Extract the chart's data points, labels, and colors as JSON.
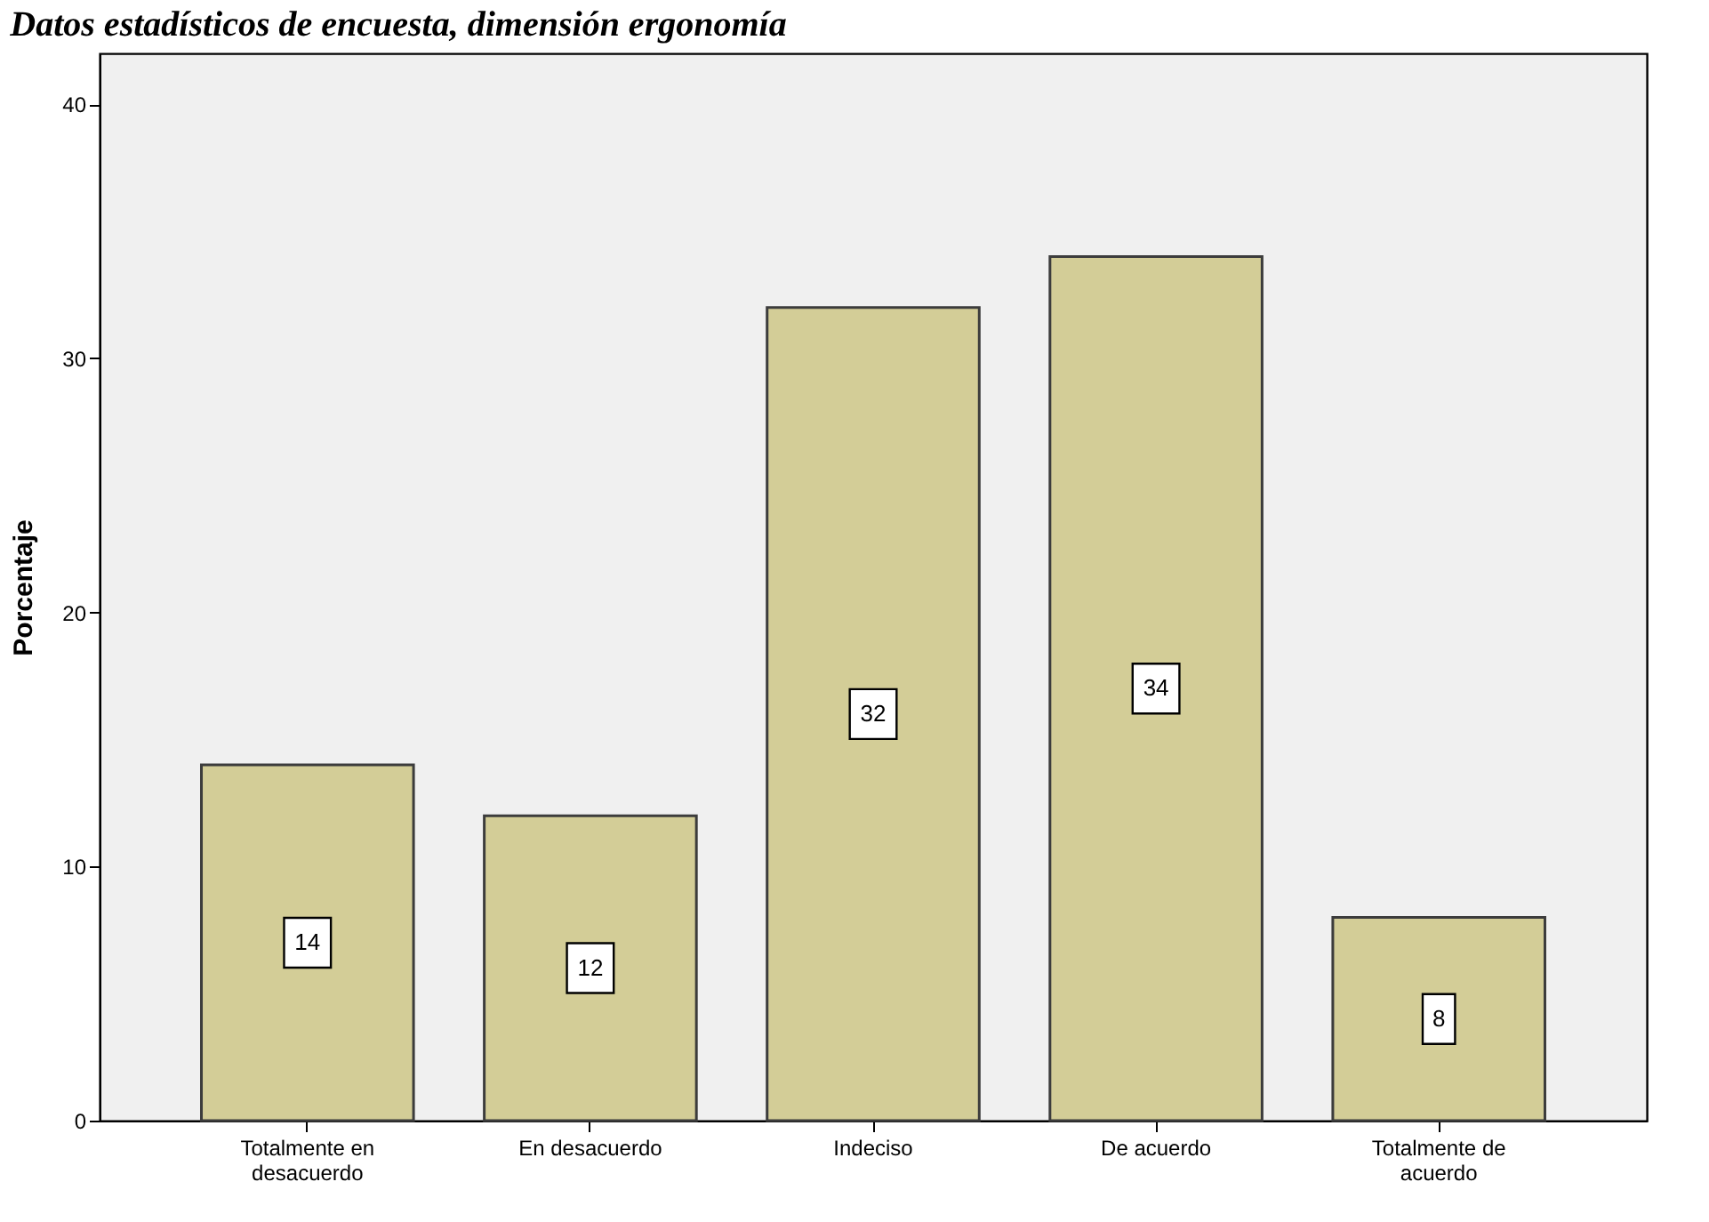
{
  "chart_data": {
    "type": "bar",
    "title": "Datos estadísticos de encuesta, dimensión ergonomía",
    "ylabel": "Porcentaje",
    "categories": [
      "Totalmente en desacuerdo",
      "En desacuerdo",
      "Indeciso",
      "De acuerdo",
      "Totalmente de acuerdo"
    ],
    "values": [
      14,
      12,
      32,
      34,
      8
    ],
    "color": "#d3cd97",
    "ylim": [
      0,
      42
    ],
    "yticks": [
      0,
      10,
      20,
      30,
      40
    ],
    "data_labels": true
  }
}
